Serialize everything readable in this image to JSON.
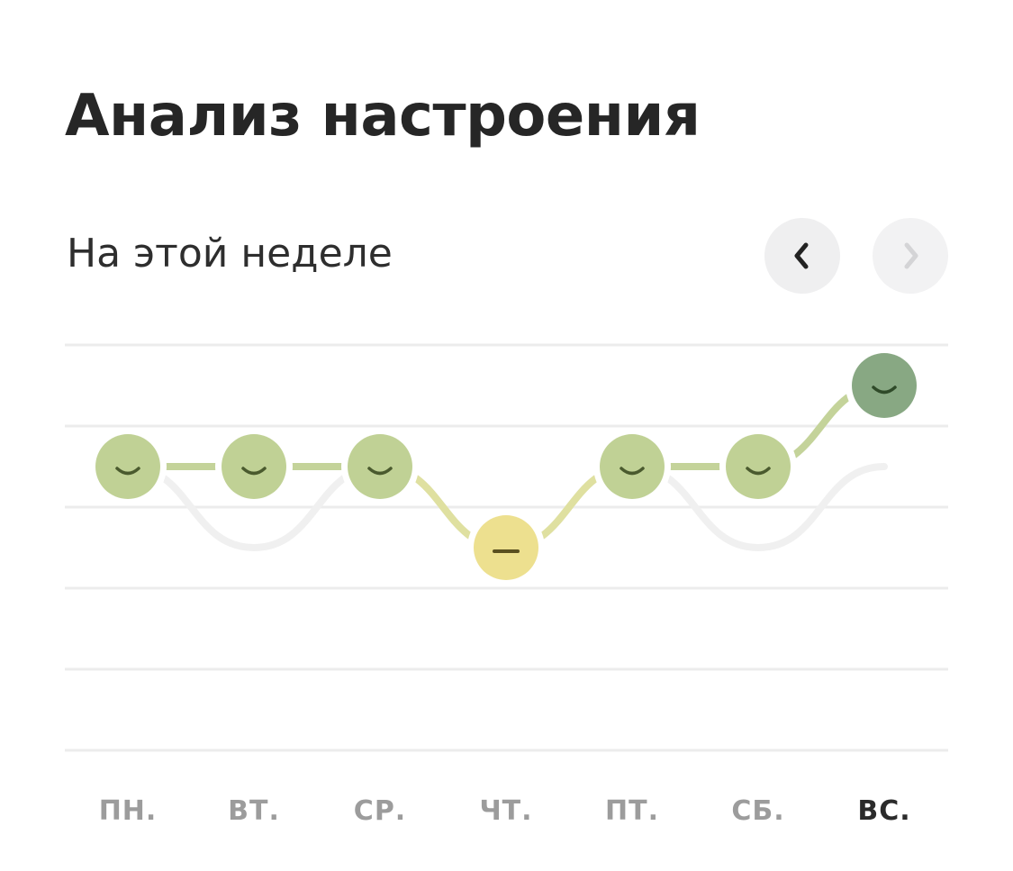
{
  "header": {
    "title": "Анализ настроения",
    "period_label": "На этой неделе"
  },
  "navigation": {
    "prev_icon": "chevron-left-icon",
    "next_icon": "chevron-right-icon",
    "next_enabled": false
  },
  "colors": {
    "good": "#c0d195",
    "very_good": "#88a883",
    "neutral": "#ede08f",
    "face_good": "#4a5a2e",
    "face_very_good": "#2f4a29",
    "face_neutral": "#5a5020",
    "gridline": "#ececec",
    "previous_week_line": "#f0f0f0",
    "active_day": "#2b2b2b",
    "inactive_day": "#9c9c9c"
  },
  "chart_data": {
    "type": "line",
    "title": "Анализ настроения",
    "subtitle": "На этой неделе",
    "categories": [
      "ПН.",
      "ВТ.",
      "СР.",
      "ЧТ.",
      "ПТ.",
      "СБ.",
      "ВС."
    ],
    "ylim": [
      0,
      5
    ],
    "grid": true,
    "series": [
      {
        "name": "this_week",
        "values": [
          3.5,
          3.5,
          3.5,
          2.5,
          3.5,
          3.5,
          4.5
        ],
        "moods": [
          "good",
          "good",
          "good",
          "neutral",
          "good",
          "good",
          "very_good"
        ]
      },
      {
        "name": "previous_week",
        "values": [
          3.5,
          2.5,
          3.5,
          2.5,
          3.5,
          2.5,
          3.5
        ]
      }
    ],
    "active_day_index": 6
  }
}
